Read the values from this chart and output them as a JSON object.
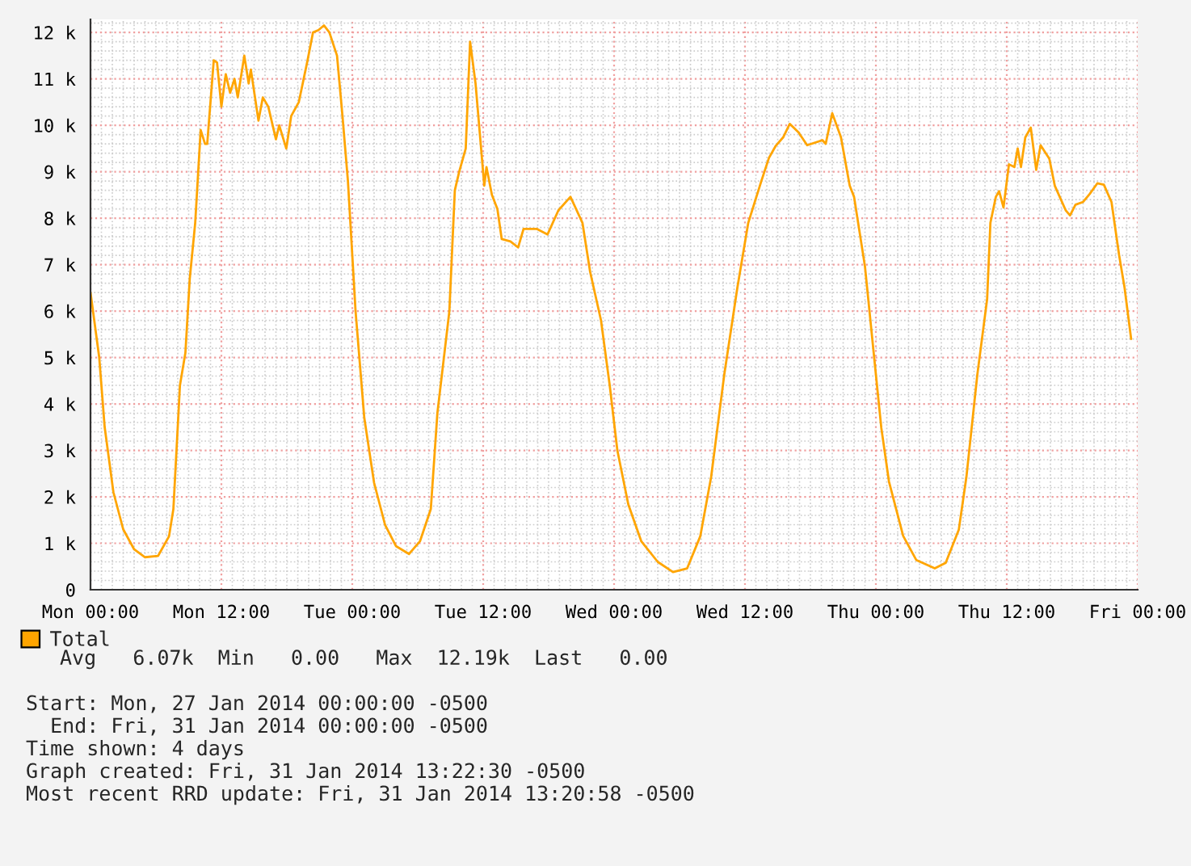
{
  "chart_data": {
    "type": "line",
    "x": [
      "2014-01-27T00:00",
      "2014-01-27T00:48",
      "2014-01-27T01:18",
      "2014-01-27T02:06",
      "2014-01-27T03:00",
      "2014-01-27T04:00",
      "2014-01-27T05:00",
      "2014-01-27T06:12",
      "2014-01-27T07:12",
      "2014-01-27T07:36",
      "2014-01-27T08:12",
      "2014-01-27T08:42",
      "2014-01-27T09:06",
      "2014-01-27T09:36",
      "2014-01-27T10:06",
      "2014-01-27T10:30",
      "2014-01-27T10:42",
      "2014-01-27T11:18",
      "2014-01-27T11:36",
      "2014-01-27T12:00",
      "2014-01-27T12:24",
      "2014-01-27T12:48",
      "2014-01-27T13:12",
      "2014-01-27T13:30",
      "2014-01-27T14:06",
      "2014-01-27T14:30",
      "2014-01-27T14:42",
      "2014-01-27T15:24",
      "2014-01-27T15:48",
      "2014-01-27T16:18",
      "2014-01-27T17:00",
      "2014-01-27T17:18",
      "2014-01-27T17:57",
      "2014-01-27T18:24",
      "2014-01-27T19:06",
      "2014-01-27T19:54",
      "2014-01-27T20:24",
      "2014-01-27T20:54",
      "2014-01-27T21:24",
      "2014-01-27T21:54",
      "2014-01-27T22:36",
      "2014-01-27T23:06",
      "2014-01-27T23:36",
      "2014-01-28T00:18",
      "2014-01-28T01:06",
      "2014-01-28T02:00",
      "2014-01-28T03:00",
      "2014-01-28T04:00",
      "2014-01-28T05:12",
      "2014-01-28T06:12",
      "2014-01-28T07:12",
      "2014-01-28T07:48",
      "2014-01-28T08:54",
      "2014-01-28T09:24",
      "2014-01-28T09:48",
      "2014-01-28T10:24",
      "2014-01-28T10:48",
      "2014-01-28T11:18",
      "2014-01-28T12:06",
      "2014-01-28T12:18",
      "2014-01-28T12:48",
      "2014-01-28T13:18",
      "2014-01-28T13:42",
      "2014-01-28T14:30",
      "2014-01-28T15:12",
      "2014-01-28T15:42",
      "2014-01-28T16:54",
      "2014-01-28T17:54",
      "2014-01-28T18:54",
      "2014-01-28T20:00",
      "2014-01-28T21:06",
      "2014-01-28T21:48",
      "2014-01-28T22:48",
      "2014-01-28T23:36",
      "2014-01-29T00:18",
      "2014-01-29T01:18",
      "2014-01-29T02:30",
      "2014-01-29T04:00",
      "2014-01-29T05:24",
      "2014-01-29T06:42",
      "2014-01-29T07:54",
      "2014-01-29T08:54",
      "2014-01-29T10:06",
      "2014-01-29T11:18",
      "2014-01-29T12:18",
      "2014-01-29T13:30",
      "2014-01-29T14:12",
      "2014-01-29T14:48",
      "2014-01-29T15:30",
      "2014-01-29T16:06",
      "2014-01-29T16:54",
      "2014-01-29T17:42",
      "2014-01-29T19:06",
      "2014-01-29T19:24",
      "2014-01-29T20:00",
      "2014-01-29T20:48",
      "2014-01-29T21:36",
      "2014-01-29T22:00",
      "2014-01-29T23:00",
      "2014-01-29T23:48",
      "2014-01-30T00:30",
      "2014-01-30T01:12",
      "2014-01-30T02:30",
      "2014-01-30T03:42",
      "2014-01-30T05:24",
      "2014-01-30T06:24",
      "2014-01-30T07:36",
      "2014-01-30T08:18",
      "2014-01-30T09:18",
      "2014-01-30T10:12",
      "2014-01-30T10:30",
      "2014-01-30T11:00",
      "2014-01-30T11:18",
      "2014-01-30T11:42",
      "2014-01-30T12:12",
      "2014-01-30T12:42",
      "2014-01-30T13:00",
      "2014-01-30T13:18",
      "2014-01-30T13:42",
      "2014-01-30T14:12",
      "2014-01-30T14:42",
      "2014-01-30T15:06",
      "2014-01-30T15:54",
      "2014-01-30T16:24",
      "2014-01-30T17:24",
      "2014-01-30T17:48",
      "2014-01-30T18:18",
      "2014-01-30T19:00",
      "2014-01-30T19:36",
      "2014-01-30T20:18",
      "2014-01-30T20:54",
      "2014-01-30T21:36",
      "2014-01-30T22:18",
      "2014-01-30T22:48",
      "2014-01-30T23:24"
    ],
    "series": [
      {
        "name": "Total",
        "color": "#ffa500",
        "values": [
          6.4,
          5.0,
          3.5,
          2.1,
          1.3,
          0.87,
          0.7,
          0.73,
          1.15,
          1.74,
          4.4,
          5.1,
          6.7,
          7.9,
          9.9,
          9.6,
          9.6,
          11.4,
          11.35,
          10.4,
          11.1,
          10.7,
          11.0,
          10.6,
          11.5,
          10.9,
          11.2,
          10.1,
          10.6,
          10.4,
          9.7,
          10.0,
          9.5,
          10.2,
          10.5,
          11.4,
          12.0,
          12.05,
          12.15,
          12.0,
          11.5,
          10.2,
          8.8,
          6.0,
          3.7,
          2.3,
          1.4,
          0.94,
          0.77,
          1.04,
          1.74,
          3.8,
          6.0,
          8.6,
          9.0,
          9.5,
          11.8,
          10.9,
          8.7,
          9.1,
          8.5,
          8.2,
          7.55,
          7.5,
          7.37,
          7.77,
          7.77,
          7.65,
          8.17,
          8.46,
          7.9,
          6.85,
          5.8,
          4.4,
          3.0,
          1.84,
          1.04,
          0.6,
          0.38,
          0.46,
          1.15,
          2.43,
          4.63,
          6.5,
          7.9,
          8.8,
          9.3,
          9.55,
          9.74,
          10.03,
          9.85,
          9.57,
          9.68,
          9.6,
          10.26,
          9.74,
          8.7,
          8.46,
          6.96,
          5.1,
          3.48,
          2.33,
          1.16,
          0.64,
          0.46,
          0.58,
          1.29,
          2.43,
          4.63,
          6.26,
          7.9,
          8.46,
          8.58,
          8.23,
          9.16,
          9.1,
          9.5,
          9.1,
          9.74,
          9.95,
          9.04,
          9.57,
          9.28,
          8.7,
          8.17,
          8.06,
          8.29,
          8.35,
          8.52,
          8.75,
          8.72,
          8.35,
          7.2,
          6.5,
          5.4
        ]
      }
    ],
    "xlim": [
      "2014-01-27T00:00",
      "2014-01-31T00:00"
    ],
    "xticks": [
      {
        "value": "2014-01-27T00:00",
        "label": "Mon 00:00"
      },
      {
        "value": "2014-01-27T12:00",
        "label": "Mon 12:00"
      },
      {
        "value": "2014-01-28T00:00",
        "label": "Tue 00:00"
      },
      {
        "value": "2014-01-28T12:00",
        "label": "Tue 12:00"
      },
      {
        "value": "2014-01-29T00:00",
        "label": "Wed 00:00"
      },
      {
        "value": "2014-01-29T12:00",
        "label": "Wed 12:00"
      },
      {
        "value": "2014-01-30T00:00",
        "label": "Thu 00:00"
      },
      {
        "value": "2014-01-30T12:00",
        "label": "Thu 12:00"
      },
      {
        "value": "2014-01-31T00:00",
        "label": "Fri 00:00"
      }
    ],
    "ylim": [
      0,
      12.28
    ],
    "yticks": [
      0,
      {
        "value": 1,
        "label": "1 k"
      },
      {
        "value": 2,
        "label": "2 k"
      },
      {
        "value": 3,
        "label": "3 k"
      },
      {
        "value": 4,
        "label": "4 k"
      },
      {
        "value": 5,
        "label": "5 k"
      },
      {
        "value": 6,
        "label": "6 k"
      },
      {
        "value": 7,
        "label": "7 k"
      },
      {
        "value": 8,
        "label": "8 k"
      },
      {
        "value": 9,
        "label": "9 k"
      },
      {
        "value": 10,
        "label": "10 k"
      },
      {
        "value": 11,
        "label": "11 k"
      },
      {
        "value": 12,
        "label": "12 k"
      }
    ],
    "grid": true,
    "legend": "bottom",
    "line_style": "solid",
    "marker": "none",
    "annotations": [
      "Avg   6.07k  Min   0.00   Max  12.19k  Last   0.00",
      "Start: Mon, 27 Jan 2014 00:00:00 -0500",
      "  End: Fri, 31 Jan 2014 00:00:00 -0500",
      "Time shown: 4 days",
      "Graph created: Fri, 31 Jan 2014 13:22:30 -0500",
      "Most recent RRD update: Fri, 31 Jan 2014 13:20:58 -0500"
    ]
  }
}
